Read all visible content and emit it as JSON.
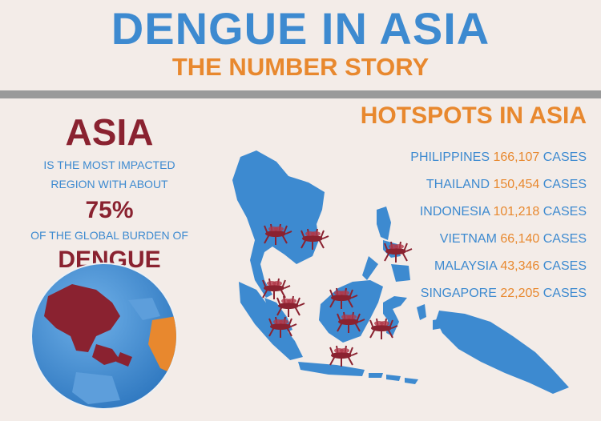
{
  "header": {
    "title": "DENGUE IN ASIA",
    "subtitle": "THE NUMBER STORY"
  },
  "left_panel": {
    "region": "ASIA",
    "line1": "IS THE MOST IMPACTED",
    "line2": "REGION WITH ABOUT",
    "percent": "75%",
    "line3": "OF THE GLOBAL BURDEN OF",
    "disease": "DENGUE"
  },
  "hotspots": {
    "title": "HOTSPOTS IN ASIA",
    "items": [
      {
        "country": "PHILIPPINES",
        "cases": "166,107",
        "unit": "CASES"
      },
      {
        "country": "THAILAND",
        "cases": "150,454",
        "unit": "CASES"
      },
      {
        "country": "INDONESIA",
        "cases": "101,218",
        "unit": "CASES"
      },
      {
        "country": "VIETNAM",
        "cases": "66,140",
        "unit": "CASES"
      },
      {
        "country": "MALAYSIA",
        "cases": "43,346",
        "unit": "CASES"
      },
      {
        "country": "SINGAPORE",
        "cases": "22,205",
        "unit": "CASES"
      }
    ]
  },
  "colors": {
    "blue": "#3d8ad0",
    "orange": "#e8882e",
    "maroon": "#8a2230",
    "background": "#f3ece8"
  },
  "icons": [
    "mosquito-icon",
    "globe-icon",
    "map-southeast-asia"
  ]
}
